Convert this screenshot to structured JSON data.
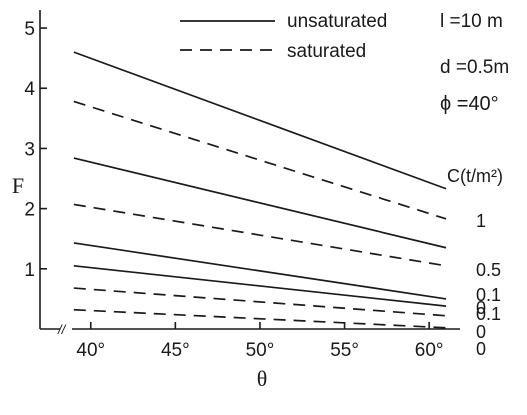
{
  "chart_data": {
    "type": "line",
    "xlabel": "θ",
    "ylabel": "F",
    "xlim": [
      37,
      62
    ],
    "ylim": [
      0,
      5.3
    ],
    "x_ticks": [
      40,
      45,
      50,
      55,
      60
    ],
    "x_tick_labels": [
      "40°",
      "45°",
      "50°",
      "55°",
      "60°"
    ],
    "y_ticks": [
      1,
      2,
      3,
      4,
      5
    ],
    "y_tick_labels": [
      "1",
      "2",
      "3",
      "4",
      "5"
    ],
    "axis_break": "//",
    "legend": {
      "position": "top",
      "entries": [
        {
          "label": "unsaturated",
          "style": "solid"
        },
        {
          "label": "saturated",
          "style": "dashed"
        }
      ]
    },
    "annotations": {
      "params": [
        "l =10 m",
        "d =0.5m",
        "ϕ =40°"
      ],
      "c_header": "C(t/m²)"
    },
    "series": [
      {
        "label": "1",
        "style": "solid",
        "x": [
          39,
          61
        ],
        "y": [
          4.6,
          2.33
        ]
      },
      {
        "label": "1",
        "style": "dashed",
        "x": [
          39,
          61
        ],
        "y": [
          3.78,
          1.83
        ]
      },
      {
        "label": "0.5",
        "style": "solid",
        "x": [
          39,
          61
        ],
        "y": [
          2.84,
          1.35
        ]
      },
      {
        "label": "0.5",
        "style": "dashed",
        "x": [
          39,
          61
        ],
        "y": [
          2.07,
          1.05
        ]
      },
      {
        "label": "0.1",
        "style": "solid",
        "x": [
          39,
          61
        ],
        "y": [
          1.43,
          0.5
        ]
      },
      {
        "label": "0",
        "style": "solid",
        "x": [
          39,
          61
        ],
        "y": [
          1.05,
          0.38
        ]
      },
      {
        "label": "0.1",
        "style": "dashed",
        "x": [
          39,
          61
        ],
        "y": [
          0.68,
          0.22
        ]
      },
      {
        "label": "0",
        "style": "dashed",
        "x": [
          39,
          61
        ],
        "y": [
          0.32,
          0.02
        ]
      }
    ]
  }
}
